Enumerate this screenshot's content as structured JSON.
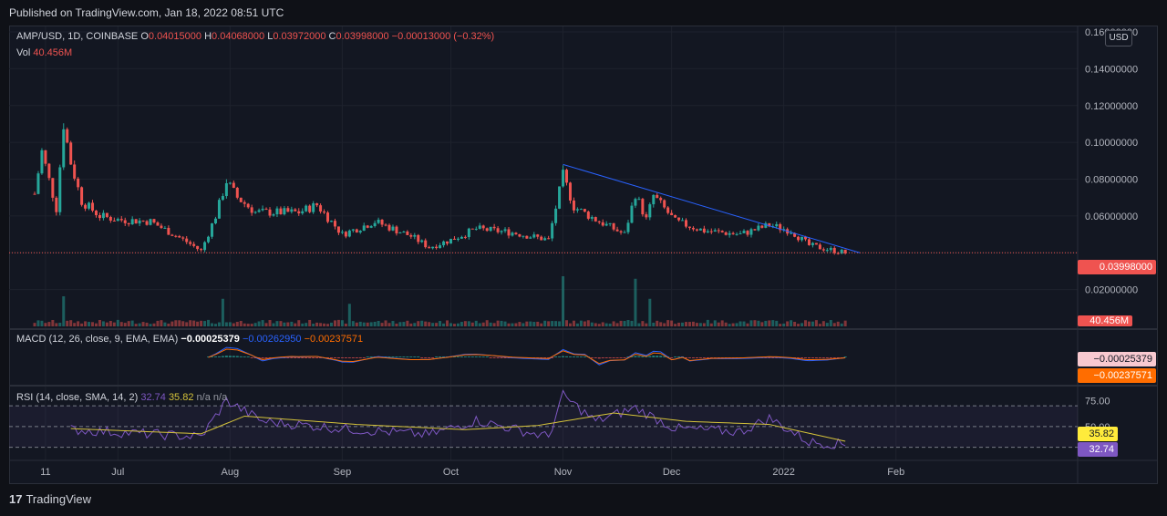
{
  "header": {
    "published": "Published on TradingView.com, Jan 18, 2022 08:51 UTC"
  },
  "legend": {
    "symbol": "AMP/USD, 1D, COINBASE",
    "o_label": "O",
    "o": "0.04015000",
    "h_label": "H",
    "h": "0.04068000",
    "l_label": "L",
    "l": "0.03972000",
    "c_label": "C",
    "c": "0.03998000",
    "change": "−0.00013000 (−0.32%)",
    "vol_label": "Vol",
    "vol": "40.456M",
    "macd_label": "MACD (12, 26, close, 9, EMA, EMA)",
    "macd_val": "−0.00025379",
    "macd_signal": "−0.00262950",
    "macd_hist": "−0.00237571",
    "rsi_label": "RSI (14, close, SMA, 14, 2)",
    "rsi_val": "32.74",
    "rsi_ma": "35.82",
    "rsi_na1": "n/a",
    "rsi_na2": "n/a"
  },
  "price_axis": {
    "currency": "USD",
    "ticks": [
      "0.16000000",
      "0.14000000",
      "0.12000000",
      "0.10000000",
      "0.08000000",
      "0.06000000",
      "0.02000000"
    ],
    "last_price_tag": "0.03998000",
    "volume_tag": "40.456M"
  },
  "macd_axis": {
    "tag1": "−0.00025379",
    "tag2": "−0.00237571"
  },
  "rsi_axis": {
    "ticks": [
      "75.00",
      "50.00"
    ],
    "tag_ma": "35.82",
    "tag_rsi": "32.74"
  },
  "time_axis": {
    "labels": [
      "11",
      "Jul",
      "Aug",
      "Sep",
      "Oct",
      "Nov",
      "Dec",
      "2022",
      "Feb"
    ]
  },
  "footer": {
    "brand": "TradingView",
    "logo": "17"
  },
  "colors": {
    "up": "#26a69a",
    "down": "#ef5350",
    "trend": "#2962ff",
    "rsi": "#7e57c2",
    "rsi_ma": "#d4c23a",
    "macd": "#2962ff",
    "signal": "#ff6d00"
  },
  "chart_data": {
    "type": "candlestick",
    "title": "AMP/USD, 1D, COINBASE",
    "ylim": [
      0.0,
      0.16
    ],
    "x_range": [
      "2021-06-08",
      "2022-02-25"
    ],
    "trendline": {
      "start": {
        "date": "2021-11-01",
        "value": 0.088
      },
      "end": {
        "date": "2022-01-22",
        "value": 0.04
      }
    },
    "anchors": [
      {
        "date": "2021-06-08",
        "close": 0.072
      },
      {
        "date": "2021-06-10",
        "close": 0.095
      },
      {
        "date": "2021-06-14",
        "close": 0.064
      },
      {
        "date": "2021-06-16",
        "close": 0.11
      },
      {
        "date": "2021-06-18",
        "close": 0.089
      },
      {
        "date": "2021-06-21",
        "close": 0.068
      },
      {
        "date": "2021-06-26",
        "close": 0.06
      },
      {
        "date": "2021-07-01",
        "close": 0.058
      },
      {
        "date": "2021-07-10",
        "close": 0.057
      },
      {
        "date": "2021-07-20",
        "close": 0.046
      },
      {
        "date": "2021-07-24",
        "close": 0.041
      },
      {
        "date": "2021-07-28",
        "close": 0.06
      },
      {
        "date": "2021-07-31",
        "close": 0.079
      },
      {
        "date": "2021-08-03",
        "close": 0.07
      },
      {
        "date": "2021-08-08",
        "close": 0.062
      },
      {
        "date": "2021-08-20",
        "close": 0.062
      },
      {
        "date": "2021-08-25",
        "close": 0.066
      },
      {
        "date": "2021-09-01",
        "close": 0.05
      },
      {
        "date": "2021-09-10",
        "close": 0.057
      },
      {
        "date": "2021-09-20",
        "close": 0.049
      },
      {
        "date": "2021-09-25",
        "close": 0.043
      },
      {
        "date": "2021-10-01",
        "close": 0.047
      },
      {
        "date": "2021-10-08",
        "close": 0.053
      },
      {
        "date": "2021-10-18",
        "close": 0.051
      },
      {
        "date": "2021-10-28",
        "close": 0.047
      },
      {
        "date": "2021-11-01",
        "close": 0.082
      },
      {
        "date": "2021-11-04",
        "close": 0.065
      },
      {
        "date": "2021-11-10",
        "close": 0.058
      },
      {
        "date": "2021-11-18",
        "close": 0.05
      },
      {
        "date": "2021-11-21",
        "close": 0.072
      },
      {
        "date": "2021-11-24",
        "close": 0.058
      },
      {
        "date": "2021-11-26",
        "close": 0.071
      },
      {
        "date": "2021-12-02",
        "close": 0.057
      },
      {
        "date": "2021-12-10",
        "close": 0.052
      },
      {
        "date": "2021-12-20",
        "close": 0.05
      },
      {
        "date": "2021-12-28",
        "close": 0.055
      },
      {
        "date": "2022-01-03",
        "close": 0.052
      },
      {
        "date": "2022-01-08",
        "close": 0.044
      },
      {
        "date": "2022-01-18",
        "close": 0.04
      }
    ],
    "volume_spikes": [
      {
        "date": "2021-06-16",
        "value": 0.6
      },
      {
        "date": "2021-07-30",
        "value": 0.55
      },
      {
        "date": "2021-09-03",
        "value": 0.45
      },
      {
        "date": "2021-11-01",
        "value": 1.0
      },
      {
        "date": "2021-11-21",
        "value": 0.95
      },
      {
        "date": "2021-11-25",
        "value": 0.55
      }
    ],
    "macd_range": [
      -0.012,
      0.006
    ],
    "rsi_range": [
      20,
      85
    ],
    "rsi_anchors": [
      {
        "date": "2021-06-18",
        "value": 47
      },
      {
        "date": "2021-07-24",
        "value": 40
      },
      {
        "date": "2021-07-31",
        "value": 75
      },
      {
        "date": "2021-08-10",
        "value": 55
      },
      {
        "date": "2021-09-01",
        "value": 48
      },
      {
        "date": "2021-09-25",
        "value": 42
      },
      {
        "date": "2021-10-08",
        "value": 56
      },
      {
        "date": "2021-10-28",
        "value": 40
      },
      {
        "date": "2021-11-01",
        "value": 80
      },
      {
        "date": "2021-11-10",
        "value": 55
      },
      {
        "date": "2021-11-21",
        "value": 68
      },
      {
        "date": "2021-12-02",
        "value": 48
      },
      {
        "date": "2021-12-20",
        "value": 45
      },
      {
        "date": "2021-12-28",
        "value": 58
      },
      {
        "date": "2022-01-08",
        "value": 35
      },
      {
        "date": "2022-01-18",
        "value": 32.74
      }
    ],
    "rsi_bands": {
      "upper": 70,
      "middle": 50,
      "lower": 30
    },
    "rsi_ma_anchors": [
      {
        "date": "2021-06-18",
        "value": 48
      },
      {
        "date": "2021-07-24",
        "value": 43
      },
      {
        "date": "2021-08-05",
        "value": 60
      },
      {
        "date": "2021-09-05",
        "value": 52
      },
      {
        "date": "2021-10-05",
        "value": 47
      },
      {
        "date": "2021-10-25",
        "value": 51
      },
      {
        "date": "2021-11-15",
        "value": 63
      },
      {
        "date": "2021-12-05",
        "value": 55
      },
      {
        "date": "2021-12-28",
        "value": 52
      },
      {
        "date": "2022-01-18",
        "value": 35.82
      }
    ]
  }
}
